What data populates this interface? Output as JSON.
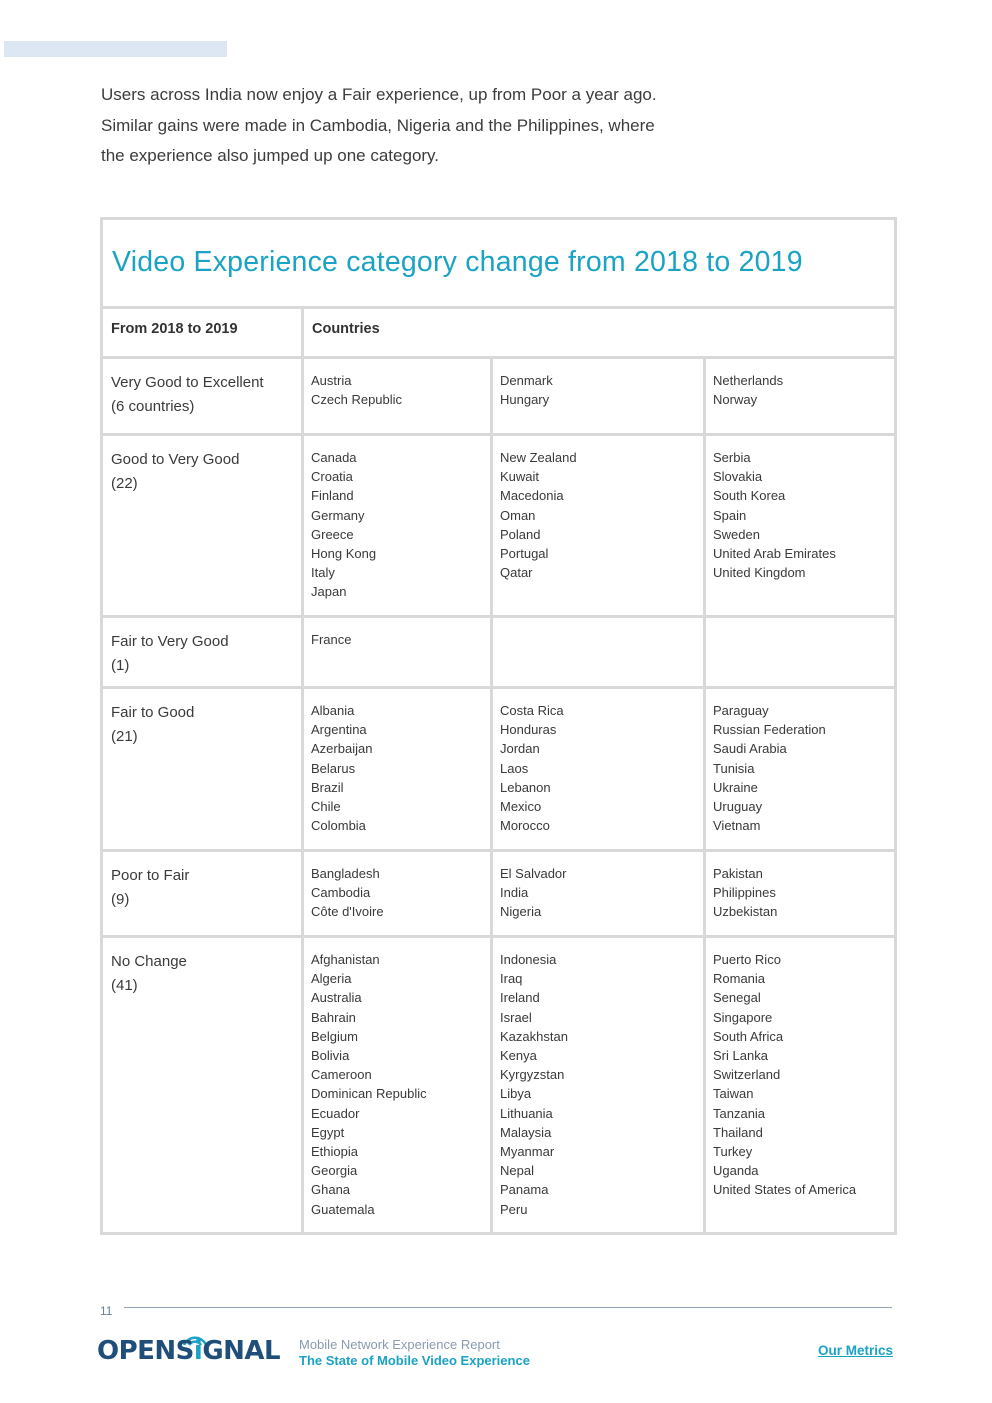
{
  "intro": [
    "Users across India now enjoy a Fair experience, up from Poor a year ago.",
    "Similar gains were made in Cambodia, Nigeria and the Philippines, where",
    "the experience also jumped up one category."
  ],
  "table": {
    "title": "Video Experience category change from 2018 to 2019",
    "header_col1": "From 2018 to 2019",
    "header_col2": "Countries",
    "rows": [
      {
        "label": "Very Good to Excellent",
        "count": "(6 countries)",
        "col1": [
          "Austria",
          "Czech Republic"
        ],
        "col2": [
          "Denmark",
          "Hungary"
        ],
        "col3": [
          "Netherlands",
          "Norway"
        ]
      },
      {
        "label": "Good to Very Good",
        "count": "(22)",
        "col1": [
          "Canada",
          "Croatia",
          "Finland",
          "Germany",
          "Greece",
          "Hong Kong",
          "Italy",
          "Japan"
        ],
        "col2": [
          "New Zealand",
          "Kuwait",
          "Macedonia",
          "Oman",
          "Poland",
          "Portugal",
          "Qatar"
        ],
        "col3": [
          "Serbia",
          "Slovakia",
          "South Korea",
          "Spain",
          "Sweden",
          "United Arab Emirates",
          "United Kingdom"
        ]
      },
      {
        "label": "Fair to Very Good",
        "count": "(1)",
        "col1": [
          "France"
        ],
        "col2": [],
        "col3": []
      },
      {
        "label": "Fair to Good",
        "count": "(21)",
        "col1": [
          "Albania",
          "Argentina",
          "Azerbaijan",
          "Belarus",
          "Brazil",
          "Chile",
          "Colombia"
        ],
        "col2": [
          "Costa Rica",
          "Honduras",
          "Jordan",
          "Laos",
          "Lebanon",
          "Mexico",
          "Morocco"
        ],
        "col3": [
          "Paraguay",
          "Russian Federation",
          "Saudi Arabia",
          "Tunisia",
          "Ukraine",
          "Uruguay",
          "Vietnam"
        ]
      },
      {
        "label": "Poor to Fair",
        "count": "(9)",
        "col1": [
          "Bangladesh",
          "Cambodia",
          "Côte d'Ivoire"
        ],
        "col2": [
          "El Salvador",
          "India",
          "Nigeria"
        ],
        "col3": [
          "Pakistan",
          "Philippines",
          "Uzbekistan"
        ]
      },
      {
        "label": "No Change",
        "count": "(41)",
        "col1": [
          "Afghanistan",
          "Algeria",
          "Australia",
          "Bahrain",
          "Belgium",
          "Bolivia",
          "Cameroon",
          "Dominican Republic",
          "Ecuador",
          "Egypt",
          "Ethiopia",
          "Georgia",
          "Ghana",
          "Guatemala"
        ],
        "col2": [
          "Indonesia",
          "Iraq",
          "Ireland",
          "Israel",
          "Kazakhstan",
          "Kenya",
          "Kyrgyzstan",
          "Libya",
          "Lithuania",
          "Malaysia",
          "Myanmar",
          "Nepal",
          "Panama",
          "Peru"
        ],
        "col3": [
          "Puerto Rico",
          "Romania",
          "Senegal",
          "Singapore",
          "South Africa",
          "Sri Lanka",
          "Switzerland",
          "Taiwan",
          "Tanzania",
          "Thailand",
          "Turkey",
          "Uganda",
          "United States of America"
        ]
      }
    ]
  },
  "footer": {
    "page_number": "11",
    "logo_pre": "OPENS",
    "logo_accent": "i",
    "logo_post": "GNAL",
    "report_name": "Mobile Network Experience Report",
    "report_subtitle": "The State of Mobile Video Experience",
    "link": "Our Metrics"
  },
  "colors": {
    "accent": "#1ba3c6",
    "brand_dark": "#1e4e79",
    "border": "#d9d9d9"
  }
}
